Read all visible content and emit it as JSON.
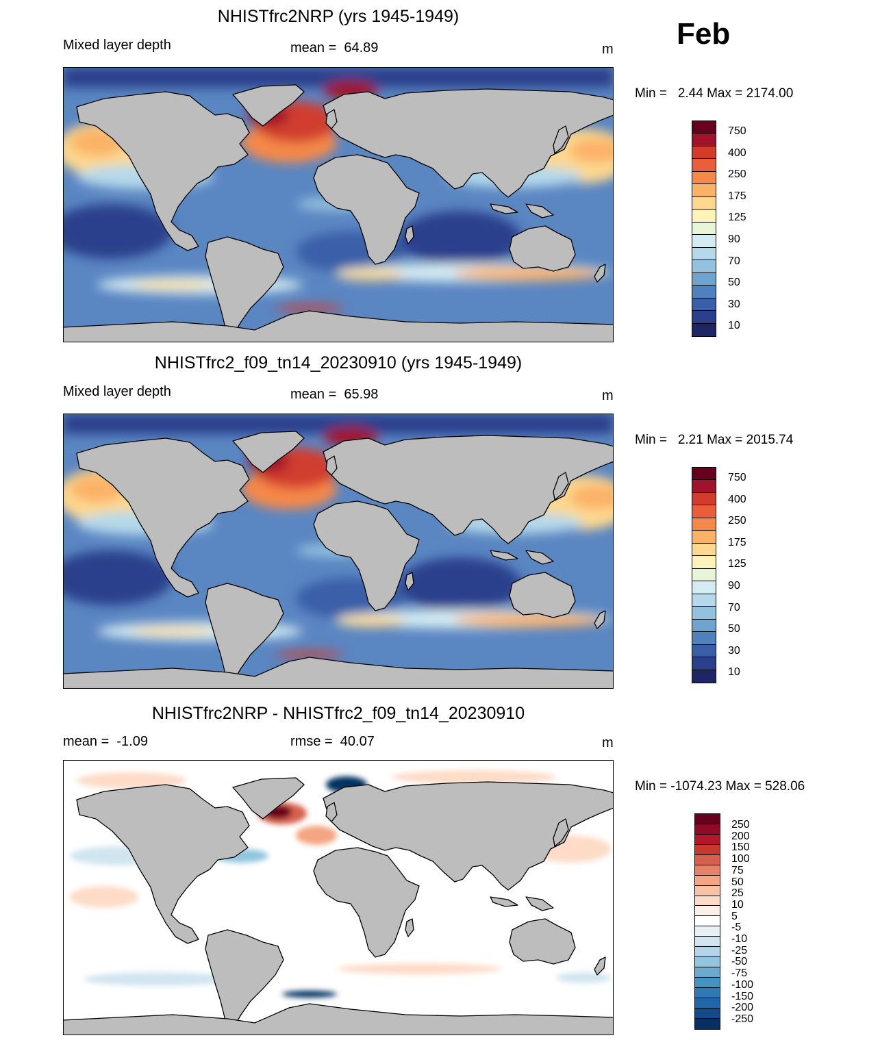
{
  "month": "Feb",
  "panels": [
    {
      "title": "NHISTfrc2NRP (yrs 1945-1949)",
      "left_text": "Mixed layer depth",
      "center_text": "mean =  64.89",
      "units": "m",
      "minmax": "Min =   2.44 Max = 2174.00",
      "colorbar": {
        "labels": [
          "750",
          "400",
          "250",
          "175",
          "125",
          "90",
          "70",
          "50",
          "30",
          "10"
        ],
        "colors": [
          "#67001f",
          "#a0132a",
          "#d13c2d",
          "#ea5e3a",
          "#f6884a",
          "#fbb267",
          "#fdd88f",
          "#fff3b8",
          "#e8f5d8",
          "#d4ebf2",
          "#b5d9ea",
          "#93c1de",
          "#6ea4cf",
          "#4f81bc",
          "#3b5ea8",
          "#2b3f8c",
          "#202563"
        ]
      }
    },
    {
      "title": "NHISTfrc2_f09_tn14_20230910 (yrs 1945-1949)",
      "left_text": "Mixed layer depth",
      "center_text": "mean =  65.98",
      "units": "m",
      "minmax": "Min =   2.21 Max = 2015.74",
      "colorbar": {
        "labels": [
          "750",
          "400",
          "250",
          "175",
          "125",
          "90",
          "70",
          "50",
          "30",
          "10"
        ],
        "colors": [
          "#67001f",
          "#a0132a",
          "#d13c2d",
          "#ea5e3a",
          "#f6884a",
          "#fbb267",
          "#fdd88f",
          "#fff3b8",
          "#e8f5d8",
          "#d4ebf2",
          "#b5d9ea",
          "#93c1de",
          "#6ea4cf",
          "#4f81bc",
          "#3b5ea8",
          "#2b3f8c",
          "#202563"
        ]
      }
    },
    {
      "title": "NHISTfrc2NRP - NHISTfrc2_f09_tn14_20230910",
      "left_text": "mean =  -1.09",
      "center_text": "rmse =  40.07",
      "units": "m",
      "minmax": "Min = -1074.23 Max = 528.06",
      "colorbar": {
        "labels": [
          "250",
          "200",
          "150",
          "100",
          "75",
          "50",
          "25",
          "10",
          "5",
          "-5",
          "-10",
          "-25",
          "-50",
          "-75",
          "-100",
          "-150",
          "-200",
          "-250"
        ],
        "colors": [
          "#67001f",
          "#8e0c25",
          "#b2182b",
          "#c7382e",
          "#d6604d",
          "#e58267",
          "#f4a582",
          "#f8c3a4",
          "#fddbc7",
          "#fdf0e8",
          "#ffffff",
          "#e8f1f6",
          "#d1e5f0",
          "#b4d4e8",
          "#92c5de",
          "#6ba9cf",
          "#4393c3",
          "#2f79b5",
          "#2166ac",
          "#124a87",
          "#053061"
        ]
      }
    }
  ],
  "chart_data": [
    {
      "type": "heatmap",
      "title": "NHISTfrc2NRP (yrs 1945-1949)",
      "variable": "Mixed layer depth",
      "units": "m",
      "mean": 64.89,
      "min": 2.44,
      "max": 2174.0,
      "colorbar_levels": [
        10,
        30,
        50,
        70,
        90,
        125,
        175,
        250,
        400,
        750
      ]
    },
    {
      "type": "heatmap",
      "title": "NHISTfrc2_f09_tn14_20230910 (yrs 1945-1949)",
      "variable": "Mixed layer depth",
      "units": "m",
      "mean": 65.98,
      "min": 2.21,
      "max": 2015.74,
      "colorbar_levels": [
        10,
        30,
        50,
        70,
        90,
        125,
        175,
        250,
        400,
        750
      ]
    },
    {
      "type": "heatmap",
      "title": "NHISTfrc2NRP - NHISTfrc2_f09_tn14_20230910",
      "units": "m",
      "mean": -1.09,
      "rmse": 40.07,
      "min": -1074.23,
      "max": 528.06,
      "colorbar_levels": [
        -250,
        -200,
        -150,
        -100,
        -75,
        -50,
        -25,
        -10,
        -5,
        5,
        10,
        25,
        50,
        75,
        100,
        150,
        200,
        250
      ]
    }
  ]
}
